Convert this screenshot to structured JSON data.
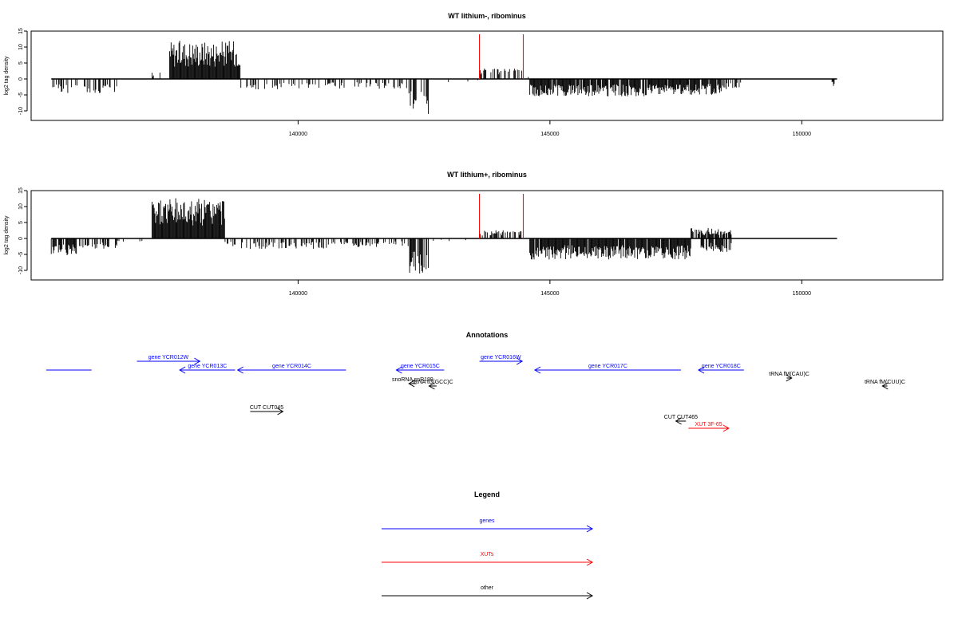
{
  "chart_data": [
    {
      "type": "bar",
      "title": "WT lithium-, ribominus",
      "ylabel": "log2 tag density",
      "xlim": [
        134700,
        152800
      ],
      "ylim": [
        -12,
        14
      ],
      "yticks": [
        -10,
        -5,
        0,
        5,
        10,
        15
      ],
      "xticks": [
        140000,
        145000,
        150000
      ],
      "x_range": [
        135100,
        150700
      ],
      "markers": [
        143600,
        144470
      ],
      "marker_color": "#ff0000",
      "marker_height": 14,
      "segments": [
        {
          "from": 135100,
          "to": 136400,
          "value": -4,
          "density": 0.35
        },
        {
          "from": 136400,
          "to": 137100,
          "value": 0,
          "density": 0
        },
        {
          "from": 137100,
          "to": 137450,
          "value": 2,
          "density": 0.2
        },
        {
          "from": 137450,
          "to": 138850,
          "value": 11,
          "density": 1
        },
        {
          "from": 138850,
          "to": 140300,
          "value": -3,
          "density": 0.3
        },
        {
          "from": 140300,
          "to": 142200,
          "value": -3,
          "density": 0.3
        },
        {
          "from": 142200,
          "to": 142600,
          "value": -10,
          "density": 0.6
        },
        {
          "from": 142600,
          "to": 143600,
          "value": -1,
          "density": 0.05
        },
        {
          "from": 143600,
          "to": 144470,
          "value": 3,
          "density": 0.45
        },
        {
          "from": 144470,
          "to": 144600,
          "value": 1,
          "density": 0.2
        },
        {
          "from": 144600,
          "to": 147000,
          "value": -5,
          "density": 0.9
        },
        {
          "from": 147000,
          "to": 148400,
          "value": -4.5,
          "density": 0.9
        },
        {
          "from": 148400,
          "to": 148800,
          "value": -3,
          "density": 0.5
        },
        {
          "from": 150600,
          "to": 150650,
          "value": -2,
          "density": 1
        }
      ]
    },
    {
      "type": "bar",
      "title": "WT lithium+, ribominus",
      "ylabel": "log2 tag density",
      "xlim": [
        134700,
        152800
      ],
      "ylim": [
        -12,
        14
      ],
      "yticks": [
        -10,
        -5,
        0,
        5,
        10,
        15
      ],
      "xticks": [
        140000,
        145000,
        150000
      ],
      "x_range": [
        135100,
        150700
      ],
      "markers": [
        143600,
        144470
      ],
      "marker_color": "#ff0000",
      "marker_height": 14,
      "segments": [
        {
          "from": 135100,
          "to": 135600,
          "value": -5,
          "density": 0.7
        },
        {
          "from": 135600,
          "to": 136400,
          "value": -3,
          "density": 0.4
        },
        {
          "from": 136400,
          "to": 137100,
          "value": -1,
          "density": 0.1
        },
        {
          "from": 137100,
          "to": 138550,
          "value": 11.5,
          "density": 1
        },
        {
          "from": 138550,
          "to": 140600,
          "value": -3,
          "density": 0.45
        },
        {
          "from": 140600,
          "to": 142200,
          "value": -2.5,
          "density": 0.4
        },
        {
          "from": 142200,
          "to": 142600,
          "value": -10,
          "density": 0.65
        },
        {
          "from": 142600,
          "to": 143600,
          "value": -1,
          "density": 0.05
        },
        {
          "from": 143600,
          "to": 144470,
          "value": 2.5,
          "density": 0.45
        },
        {
          "from": 144470,
          "to": 144600,
          "value": 1,
          "density": 0.2
        },
        {
          "from": 144600,
          "to": 147800,
          "value": -6,
          "density": 0.95
        },
        {
          "from": 147800,
          "to": 148600,
          "value": 3,
          "density": 0.8
        },
        {
          "from": 148000,
          "to": 148600,
          "value": -4,
          "density": 0.8
        }
      ]
    }
  ],
  "annotations": {
    "title": "Annotations",
    "xlim": [
      134700,
      152800
    ],
    "features": [
      {
        "label": "",
        "from": 135000,
        "to": 135900,
        "row": 2,
        "strand": "none",
        "color": "#0000ff"
      },
      {
        "label": "gene YCR012W",
        "from": 136800,
        "to": 138050,
        "row": 1,
        "strand": "+",
        "color": "#0000ff"
      },
      {
        "label": "gene YCR013C",
        "from": 137650,
        "to": 138750,
        "row": 2,
        "strand": "-",
        "color": "#0000ff"
      },
      {
        "label": "gene YCR014C",
        "from": 138800,
        "to": 140950,
        "row": 2,
        "strand": "-",
        "color": "#0000ff"
      },
      {
        "label": "gene YCR015C",
        "from": 141950,
        "to": 142900,
        "row": 2,
        "strand": "-",
        "color": "#0000ff"
      },
      {
        "label": "gene YCR016W",
        "from": 143600,
        "to": 144450,
        "row": 1,
        "strand": "+",
        "color": "#0000ff"
      },
      {
        "label": "gene YCR017C",
        "from": 144700,
        "to": 147600,
        "row": 2,
        "strand": "-",
        "color": "#0000ff"
      },
      {
        "label": "gene YCR018C",
        "from": 147950,
        "to": 148850,
        "row": 2,
        "strand": "-",
        "color": "#0000ff"
      },
      {
        "label": "tRNA tG(GCC)C",
        "from": 142600,
        "to": 142750,
        "row": 3,
        "strand": "-",
        "color": "#000000"
      },
      {
        "label": "snoRNA snR189",
        "from": 142200,
        "to": 142350,
        "row": 4,
        "strand": "-",
        "color": "#000000"
      },
      {
        "label": "tRNA fM(CAU)C",
        "from": 149700,
        "to": 149800,
        "row": 5,
        "strand": "+",
        "color": "#000000"
      },
      {
        "label": "tRNA fM(CUU)C",
        "from": 151600,
        "to": 151700,
        "row": 3,
        "strand": "-",
        "color": "#000000"
      },
      {
        "label": "CUT CUT045",
        "from": 139050,
        "to": 139700,
        "row": 6,
        "strand": "+",
        "color": "#000000"
      },
      {
        "label": "CUT CUT465",
        "from": 147500,
        "to": 147700,
        "row": 7,
        "strand": "-",
        "color": "#000000"
      },
      {
        "label": "XUT 3F-65",
        "from": 147750,
        "to": 148550,
        "row": 8,
        "strand": "+",
        "color": "#ff0000"
      }
    ]
  },
  "legend": {
    "title": "Legend",
    "items": [
      {
        "label": "genes",
        "color": "#0000ff"
      },
      {
        "label": "XUTs",
        "color": "#ff0000"
      },
      {
        "label": "other",
        "color": "#000000"
      }
    ]
  }
}
